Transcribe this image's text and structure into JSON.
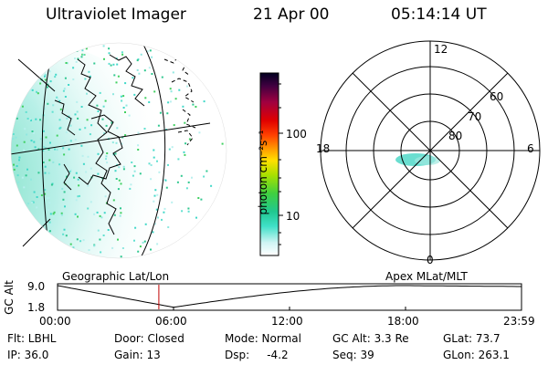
{
  "header": {
    "title": "Ultraviolet Imager",
    "date": "21 Apr 00",
    "time": "05:14:14 UT"
  },
  "colorbar": {
    "unit_label": "photon cm⁻²s⁻¹",
    "ticks": [
      "100",
      "10"
    ],
    "colors": [
      "#ffffff",
      "#c8f0f0",
      "#40e0c0",
      "#20c8a0",
      "#40d040",
      "#a0e000",
      "#ffe000",
      "#ffa000",
      "#ff4000",
      "#e00000",
      "#a00040",
      "#400040",
      "#000020"
    ]
  },
  "polar_plot": {
    "mlt_labels": {
      "top": "12",
      "left": "18",
      "right": "6",
      "bottom": "0"
    },
    "lat_labels": [
      "60",
      "70",
      "80"
    ]
  },
  "timeline": {
    "left_label": "Geographic Lat/Lon",
    "right_label": "Apex MLat/MLT",
    "axis_label": "GC Alt",
    "y_ticks": [
      "9.0",
      "1.8"
    ],
    "x_ticks": [
      "00:00",
      "06:00",
      "12:00",
      "18:00",
      "23:59"
    ],
    "current_time_hours": 5.24
  },
  "footer": {
    "row1": {
      "flt": "Flt: LBHL",
      "door": "Door: Closed",
      "mode": "Mode: Normal",
      "gc_alt": "GC Alt: 3.3 Re",
      "glat": "GLat: 73.7"
    },
    "row2": {
      "ip": "IP: 36.0",
      "gain": "Gain: 13",
      "dsp": "Dsp:     -4.2",
      "seq": "Seq: 39",
      "glon": "GLon: 263.1"
    }
  }
}
